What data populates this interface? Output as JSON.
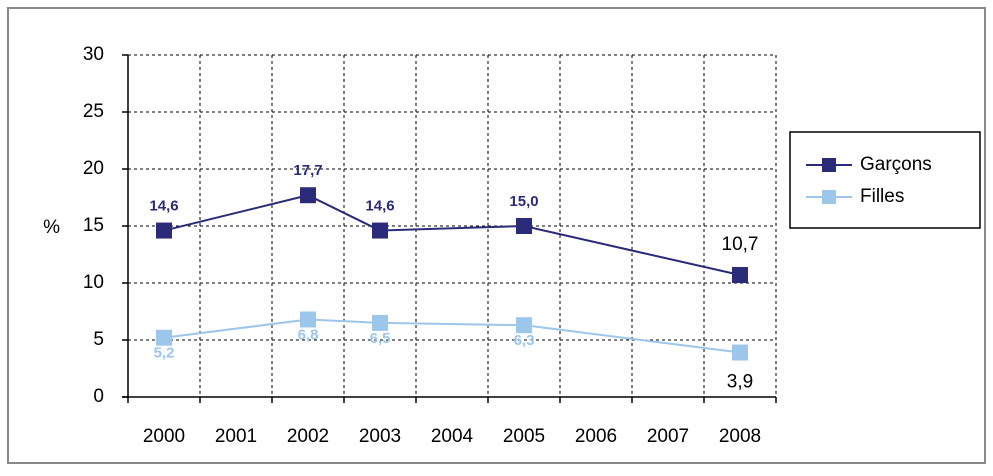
{
  "chart_data": {
    "type": "line",
    "y_label": "%",
    "x": [
      2000,
      2002,
      2003,
      2005,
      2008
    ],
    "xlim": [
      1999.5,
      2008.5
    ],
    "xticks": [
      2000,
      2001,
      2002,
      2003,
      2004,
      2005,
      2006,
      2007,
      2008
    ],
    "ylim": [
      0,
      30
    ],
    "yticks": [
      0,
      5,
      10,
      15,
      20,
      25,
      30
    ],
    "grid": true,
    "legend": "right",
    "series": [
      {
        "name": "Garçons",
        "color": "#2b2b7a",
        "values": [
          14.6,
          17.7,
          14.6,
          15.0,
          10.7
        ],
        "value_labels": [
          "14,6",
          "17,7",
          "14,6",
          "15,0",
          "10,7"
        ]
      },
      {
        "name": "Filles",
        "color": "#9cc6ea",
        "values": [
          5.2,
          6.8,
          6.5,
          6.3,
          3.9
        ],
        "value_labels": [
          "5,2",
          "6,8",
          "6,5",
          "6,3",
          "3,9"
        ]
      }
    ]
  }
}
